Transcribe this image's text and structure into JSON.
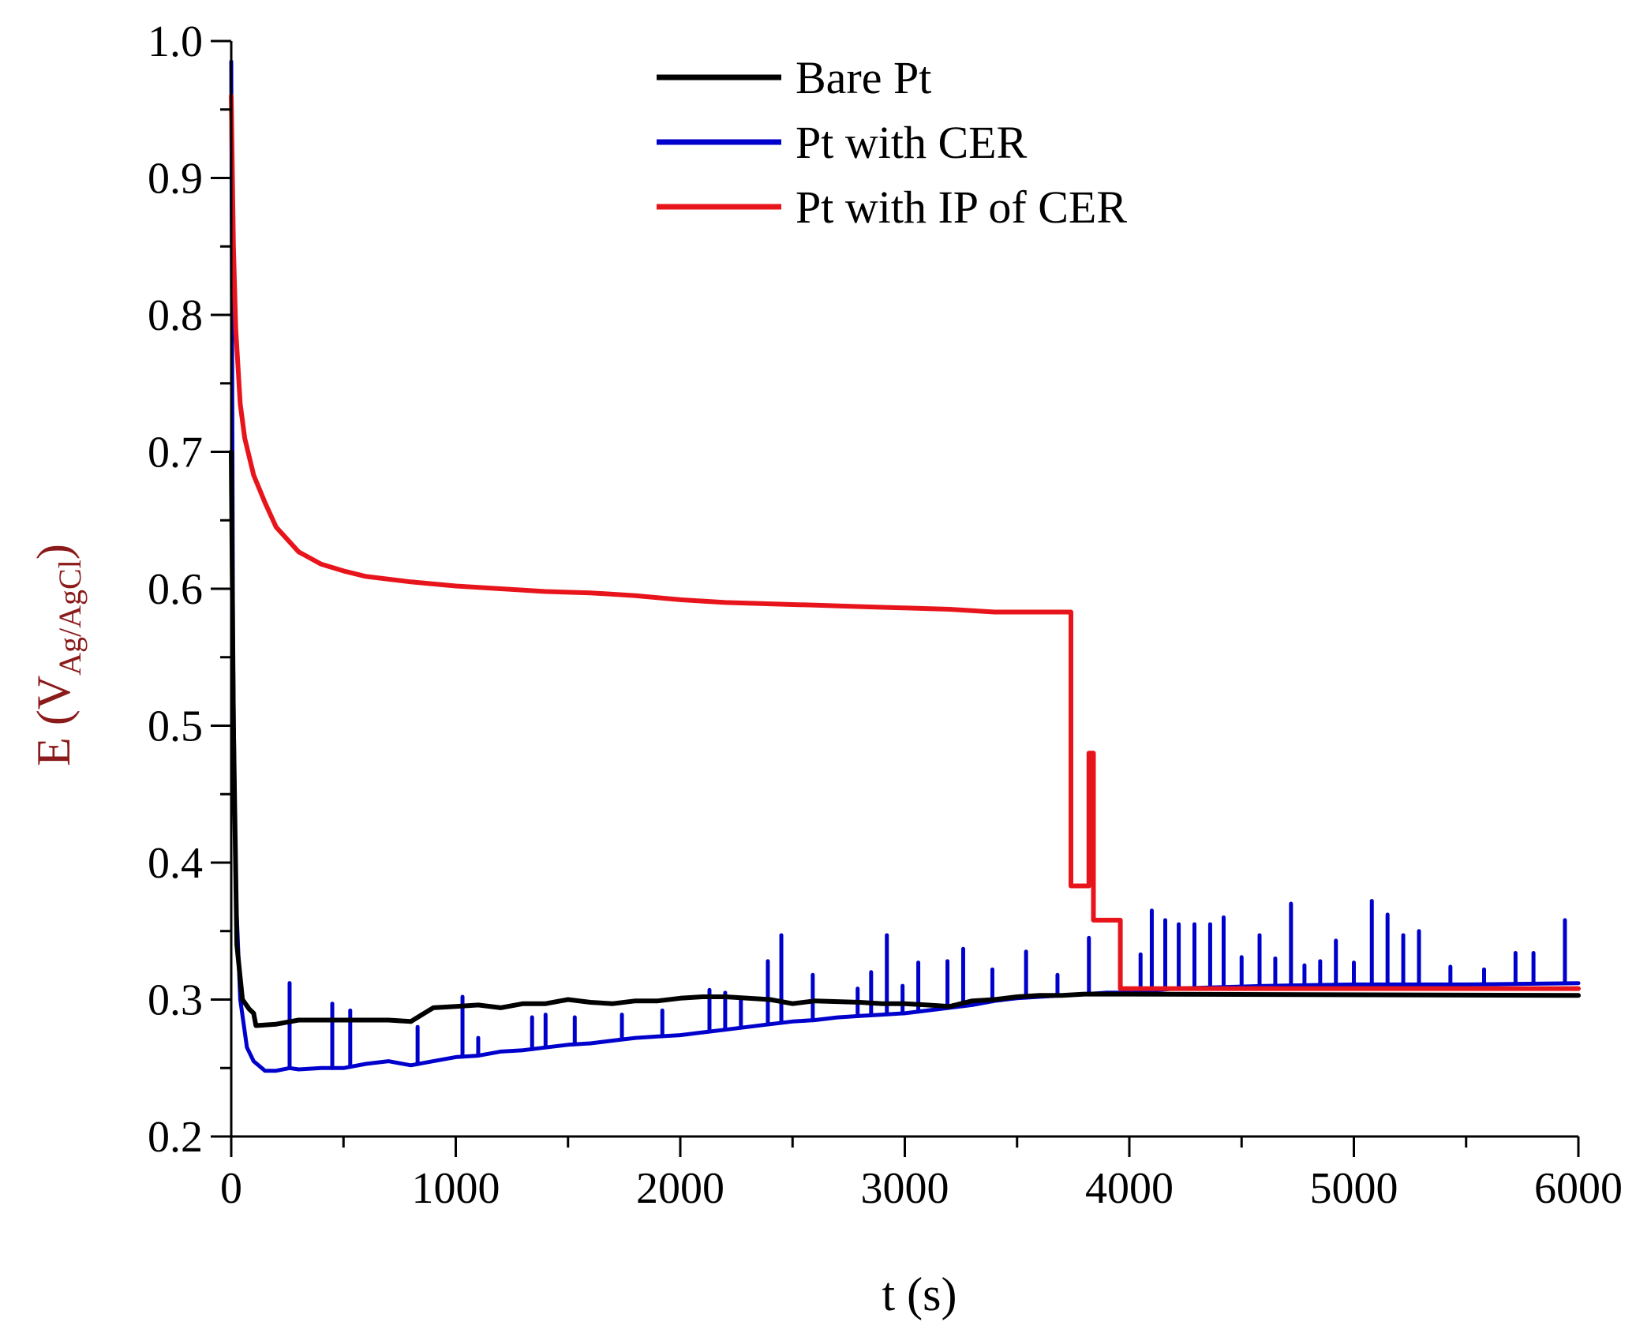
{
  "chart_data": {
    "type": "line",
    "xlabel": "t (s)",
    "ylabel": {
      "main": "E (V",
      "sub": "Ag/AgCl",
      "close": ")"
    },
    "xlim": [
      0,
      6000
    ],
    "ylim": [
      0.2,
      1.0
    ],
    "xticks": [
      0,
      1000,
      2000,
      3000,
      4000,
      5000,
      6000
    ],
    "xtick_labels": [
      "0",
      "1000",
      "2000",
      "3000",
      "4000",
      "5000",
      "6000"
    ],
    "yticks": [
      0.2,
      0.3,
      0.4,
      0.5,
      0.6,
      0.7,
      0.8,
      0.9,
      1.0
    ],
    "ytick_labels": [
      "0.2",
      "0.3",
      "0.4",
      "0.5",
      "0.6",
      "0.7",
      "0.8",
      "0.9",
      "1.0"
    ],
    "legend_position": "top-center",
    "colors": {
      "axis": "#000000",
      "ylabel": "#8b1a1a"
    },
    "series": [
      {
        "name": "Bare Pt",
        "color": "#000000",
        "points": [
          [
            0,
            0.7
          ],
          [
            10,
            0.5
          ],
          [
            25,
            0.34
          ],
          [
            50,
            0.3
          ],
          [
            80,
            0.293
          ],
          [
            100,
            0.29
          ],
          [
            110,
            0.281
          ],
          [
            200,
            0.282
          ],
          [
            300,
            0.285
          ],
          [
            500,
            0.285
          ],
          [
            700,
            0.285
          ],
          [
            800,
            0.284
          ],
          [
            850,
            0.289
          ],
          [
            900,
            0.294
          ],
          [
            1000,
            0.295
          ],
          [
            1100,
            0.296
          ],
          [
            1200,
            0.294
          ],
          [
            1300,
            0.297
          ],
          [
            1400,
            0.297
          ],
          [
            1500,
            0.3
          ],
          [
            1600,
            0.298
          ],
          [
            1700,
            0.297
          ],
          [
            1800,
            0.299
          ],
          [
            1900,
            0.299
          ],
          [
            2000,
            0.301
          ],
          [
            2100,
            0.302
          ],
          [
            2200,
            0.302
          ],
          [
            2300,
            0.301
          ],
          [
            2400,
            0.3
          ],
          [
            2500,
            0.297
          ],
          [
            2600,
            0.299
          ],
          [
            2800,
            0.298
          ],
          [
            2900,
            0.297
          ],
          [
            3000,
            0.297
          ],
          [
            3100,
            0.296
          ],
          [
            3200,
            0.295
          ],
          [
            3300,
            0.299
          ],
          [
            3400,
            0.3
          ],
          [
            3500,
            0.302
          ],
          [
            3600,
            0.303
          ],
          [
            3700,
            0.303
          ],
          [
            3800,
            0.304
          ],
          [
            4000,
            0.304
          ],
          [
            6000,
            0.303
          ]
        ]
      },
      {
        "name": "Pt with CER",
        "color": "#0000cc",
        "points": [
          [
            0,
            0.985
          ],
          [
            8,
            0.55
          ],
          [
            20,
            0.38
          ],
          [
            40,
            0.3
          ],
          [
            70,
            0.265
          ],
          [
            100,
            0.255
          ],
          [
            150,
            0.248
          ],
          [
            200,
            0.248
          ],
          [
            260,
            0.25
          ],
          [
            300,
            0.249
          ],
          [
            400,
            0.25
          ],
          [
            500,
            0.25
          ],
          [
            600,
            0.253
          ],
          [
            700,
            0.255
          ],
          [
            800,
            0.252
          ],
          [
            900,
            0.255
          ],
          [
            1000,
            0.258
          ],
          [
            1100,
            0.259
          ],
          [
            1200,
            0.262
          ],
          [
            1300,
            0.263
          ],
          [
            1400,
            0.265
          ],
          [
            1500,
            0.267
          ],
          [
            1600,
            0.268
          ],
          [
            1700,
            0.27
          ],
          [
            1800,
            0.272
          ],
          [
            1900,
            0.273
          ],
          [
            2000,
            0.274
          ],
          [
            2100,
            0.276
          ],
          [
            2200,
            0.278
          ],
          [
            2300,
            0.28
          ],
          [
            2400,
            0.282
          ],
          [
            2500,
            0.284
          ],
          [
            2600,
            0.285
          ],
          [
            2700,
            0.287
          ],
          [
            2800,
            0.288
          ],
          [
            2900,
            0.289
          ],
          [
            3000,
            0.29
          ],
          [
            3100,
            0.292
          ],
          [
            3200,
            0.294
          ],
          [
            3300,
            0.296
          ],
          [
            3400,
            0.299
          ],
          [
            3500,
            0.301
          ],
          [
            3600,
            0.302
          ],
          [
            3700,
            0.303
          ],
          [
            3800,
            0.304
          ],
          [
            3900,
            0.305
          ],
          [
            4000,
            0.305
          ],
          [
            4200,
            0.308
          ],
          [
            4600,
            0.31
          ],
          [
            5000,
            0.311
          ],
          [
            5500,
            0.311
          ],
          [
            6000,
            0.312
          ]
        ],
        "spikes": [
          [
            260,
            0.312
          ],
          [
            450,
            0.297
          ],
          [
            530,
            0.292
          ],
          [
            830,
            0.28
          ],
          [
            1030,
            0.302
          ],
          [
            1100,
            0.272
          ],
          [
            1340,
            0.287
          ],
          [
            1400,
            0.289
          ],
          [
            1530,
            0.287
          ],
          [
            1740,
            0.289
          ],
          [
            1920,
            0.292
          ],
          [
            2130,
            0.307
          ],
          [
            2200,
            0.305
          ],
          [
            2270,
            0.3
          ],
          [
            2390,
            0.328
          ],
          [
            2450,
            0.347
          ],
          [
            2590,
            0.318
          ],
          [
            2790,
            0.308
          ],
          [
            2850,
            0.32
          ],
          [
            2920,
            0.347
          ],
          [
            2990,
            0.31
          ],
          [
            3060,
            0.327
          ],
          [
            3190,
            0.328
          ],
          [
            3260,
            0.337
          ],
          [
            3390,
            0.322
          ],
          [
            3540,
            0.335
          ],
          [
            3680,
            0.318
          ],
          [
            3820,
            0.345
          ],
          [
            4050,
            0.333
          ],
          [
            4100,
            0.365
          ],
          [
            4160,
            0.358
          ],
          [
            4220,
            0.355
          ],
          [
            4290,
            0.355
          ],
          [
            4360,
            0.355
          ],
          [
            4420,
            0.36
          ],
          [
            4500,
            0.331
          ],
          [
            4580,
            0.347
          ],
          [
            4650,
            0.33
          ],
          [
            4720,
            0.37
          ],
          [
            4780,
            0.325
          ],
          [
            4850,
            0.328
          ],
          [
            4920,
            0.343
          ],
          [
            5000,
            0.327
          ],
          [
            5080,
            0.372
          ],
          [
            5150,
            0.362
          ],
          [
            5220,
            0.347
          ],
          [
            5290,
            0.35
          ],
          [
            5430,
            0.324
          ],
          [
            5580,
            0.322
          ],
          [
            5720,
            0.334
          ],
          [
            5800,
            0.334
          ],
          [
            5940,
            0.358
          ]
        ]
      },
      {
        "name": "Pt with IP of CER",
        "color": "#e8141b",
        "points": [
          [
            0,
            0.96
          ],
          [
            10,
            0.85
          ],
          [
            20,
            0.79
          ],
          [
            40,
            0.735
          ],
          [
            60,
            0.71
          ],
          [
            100,
            0.683
          ],
          [
            150,
            0.663
          ],
          [
            200,
            0.645
          ],
          [
            300,
            0.627
          ],
          [
            400,
            0.618
          ],
          [
            500,
            0.613
          ],
          [
            600,
            0.609
          ],
          [
            800,
            0.605
          ],
          [
            1000,
            0.602
          ],
          [
            1200,
            0.6
          ],
          [
            1400,
            0.598
          ],
          [
            1600,
            0.597
          ],
          [
            1800,
            0.595
          ],
          [
            2000,
            0.592
          ],
          [
            2200,
            0.59
          ],
          [
            2400,
            0.589
          ],
          [
            2600,
            0.588
          ],
          [
            2800,
            0.587
          ],
          [
            3000,
            0.586
          ],
          [
            3200,
            0.585
          ],
          [
            3400,
            0.583
          ],
          [
            3740,
            0.583
          ],
          [
            3740,
            0.383
          ],
          [
            3820,
            0.383
          ],
          [
            3820,
            0.48
          ],
          [
            3840,
            0.48
          ],
          [
            3840,
            0.358
          ],
          [
            3960,
            0.358
          ],
          [
            3960,
            0.308
          ],
          [
            6000,
            0.308
          ]
        ]
      }
    ]
  }
}
